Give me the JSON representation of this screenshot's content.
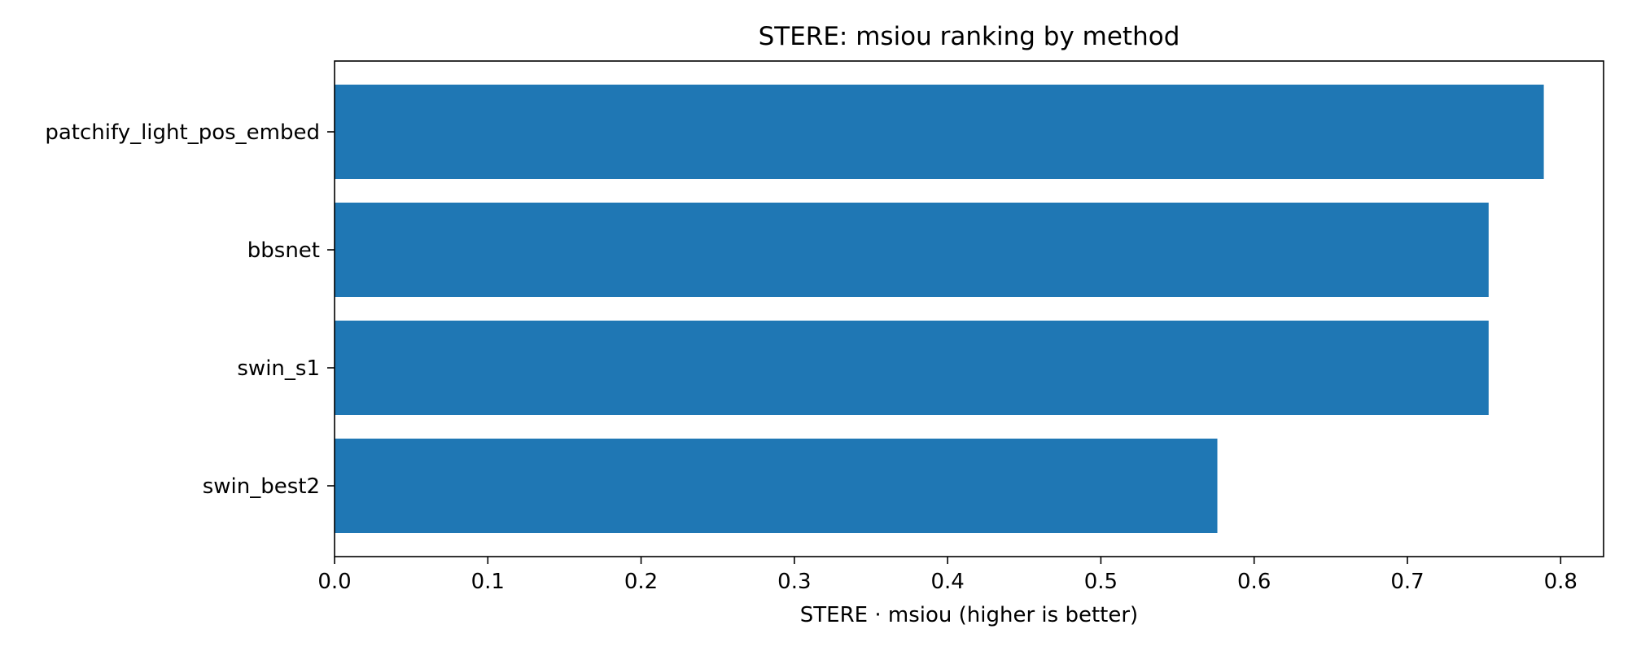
{
  "chart_data": {
    "type": "bar",
    "orientation": "horizontal",
    "title": "STERE: msiou ranking by method",
    "xlabel": "STERE · msiou (higher is better)",
    "ylabel": "",
    "categories": [
      "patchify_light_pos_embed",
      "bbsnet",
      "swin_s1",
      "swin_best2"
    ],
    "values": [
      0.789,
      0.753,
      0.753,
      0.576
    ],
    "xlim": [
      0,
      0.828
    ],
    "xticks": [
      0.0,
      0.1,
      0.2,
      0.3,
      0.4,
      0.5,
      0.6,
      0.7,
      0.8
    ],
    "xtick_labels": [
      "0.0",
      "0.1",
      "0.2",
      "0.3",
      "0.4",
      "0.5",
      "0.6",
      "0.7",
      "0.8"
    ],
    "bar_color": "#1f77b4",
    "grid": false,
    "legend": false
  }
}
